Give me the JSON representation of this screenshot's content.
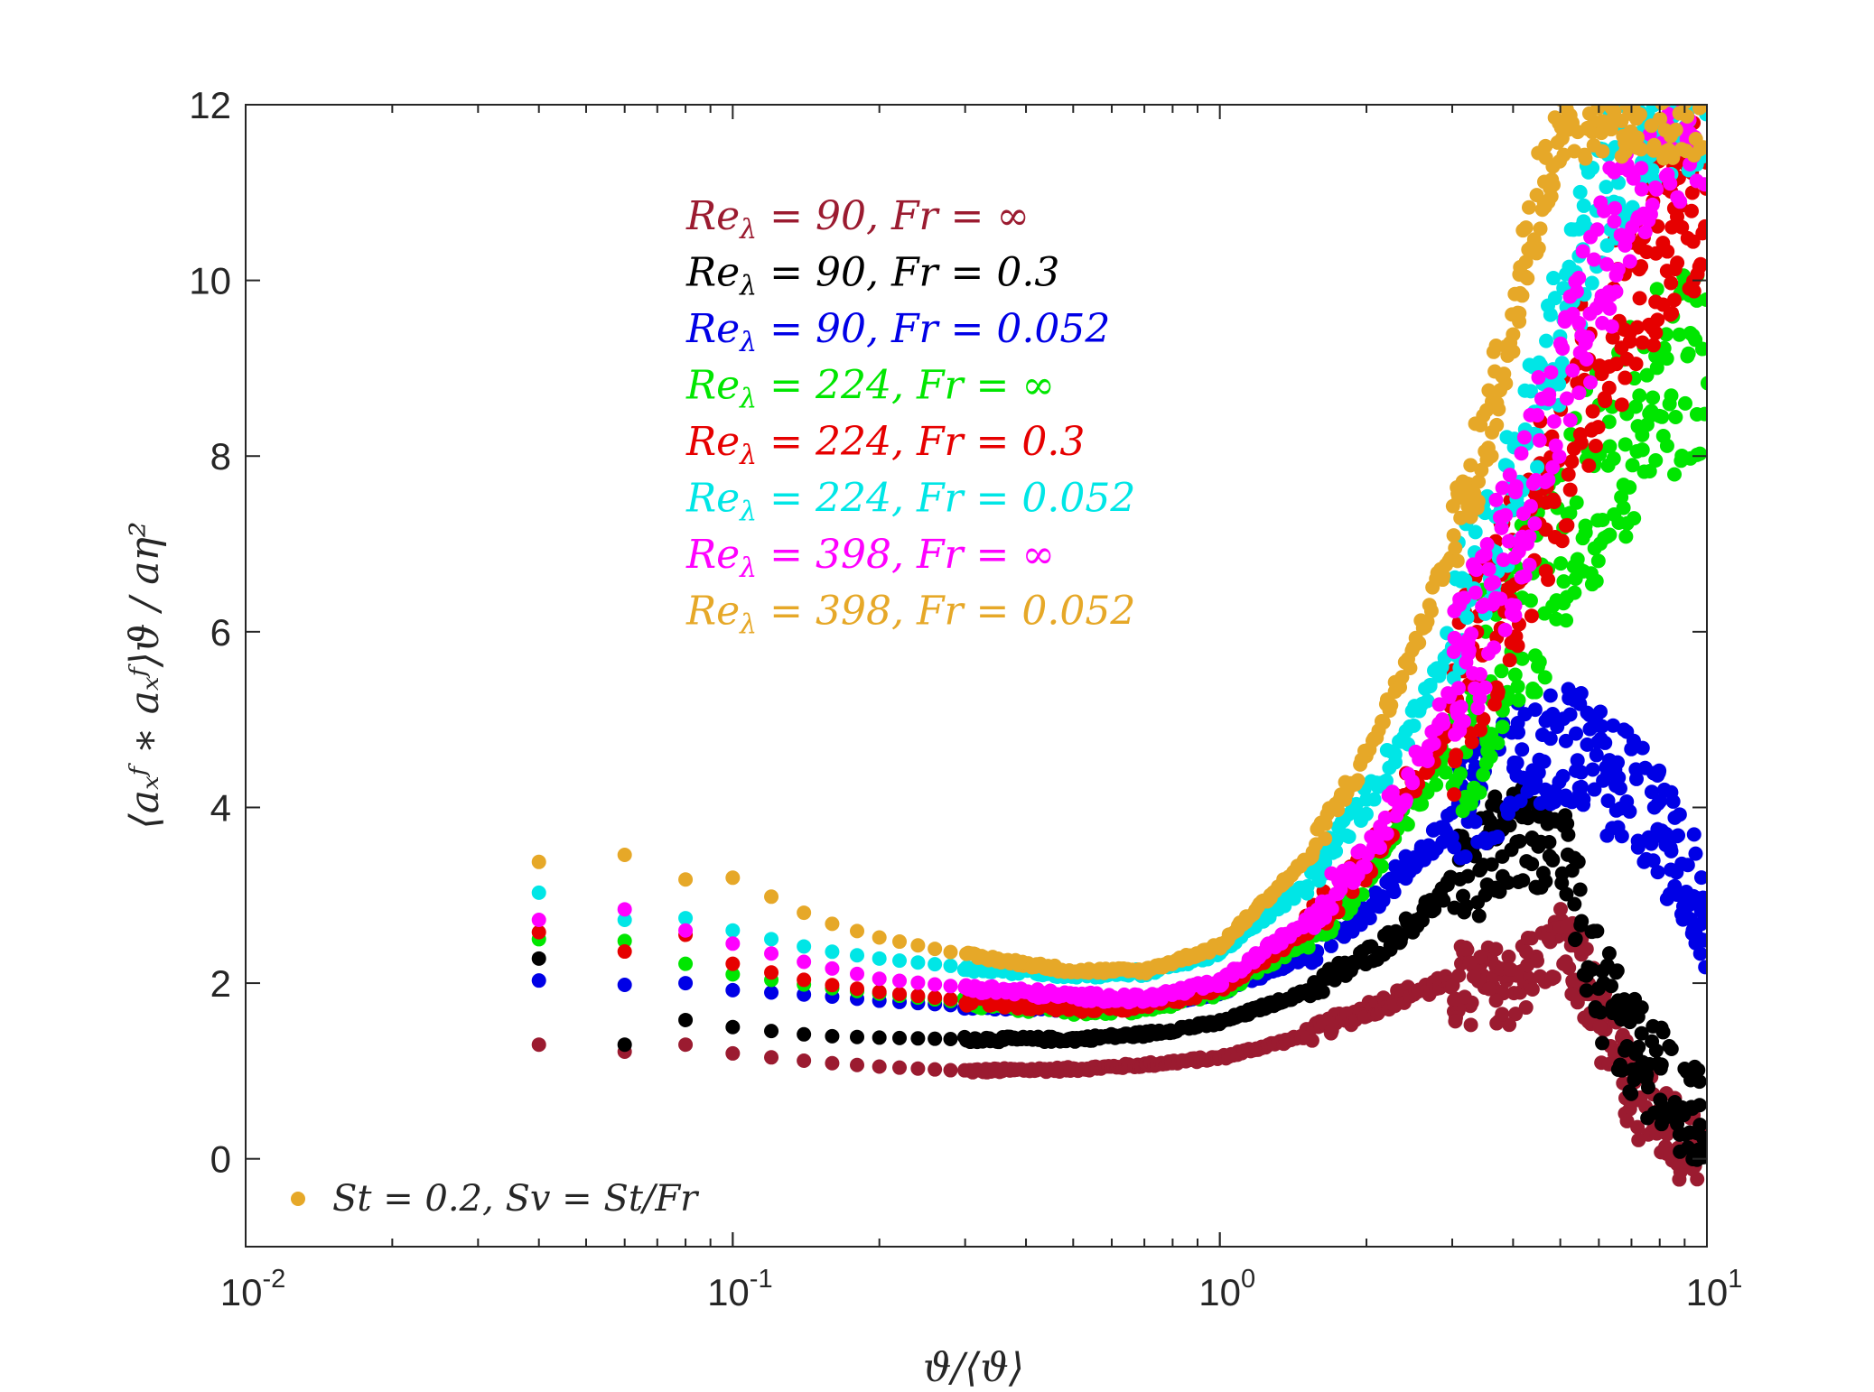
{
  "chart_data": {
    "type": "scatter",
    "xscale": "log",
    "xlim": [
      0.01,
      10
    ],
    "ylim": [
      -1,
      12
    ],
    "xlabel": "ϑ/⟨ϑ⟩",
    "ylabel": "⟨aₓᶠ ∗ aₓᶠ⟩ϑ / aη²",
    "x_ticks": [
      {
        "value": 0.01,
        "base": "10",
        "exp": "-2"
      },
      {
        "value": 0.1,
        "base": "10",
        "exp": "-1"
      },
      {
        "value": 1,
        "base": "10",
        "exp": "0"
      },
      {
        "value": 10,
        "base": "10",
        "exp": "1"
      }
    ],
    "y_ticks": [
      {
        "value": 0,
        "label": "0"
      },
      {
        "value": 2,
        "label": "2"
      },
      {
        "value": 4,
        "label": "4"
      },
      {
        "value": 6,
        "label": "6"
      },
      {
        "value": 8,
        "label": "8"
      },
      {
        "value": 10,
        "label": "10"
      },
      {
        "value": 12,
        "label": "12"
      }
    ],
    "grid": false,
    "legend_position": "top-left inside axes",
    "note": {
      "label": "St = 0.2, Sv = St/Fr",
      "color": "#E6A828"
    },
    "profile_x": [
      0.04,
      0.06,
      0.08,
      0.1,
      0.15,
      0.2,
      0.3,
      0.5,
      0.7,
      1.0,
      1.5,
      2.0,
      2.5,
      3.0,
      3.5,
      4.0,
      4.5,
      5.0,
      5.5,
      6.0,
      7.0,
      8.0,
      9.0,
      10.0
    ],
    "series": [
      {
        "name": "Reλ = 90, Fr = ∞",
        "re": "90",
        "fr": "∞",
        "color": "#9B1B30",
        "values": [
          1.3,
          1.22,
          1.3,
          1.2,
          1.1,
          1.05,
          1.0,
          1.02,
          1.07,
          1.15,
          1.4,
          1.7,
          1.9,
          2.0,
          2.0,
          2.0,
          2.2,
          2.5,
          2.2,
          1.6,
          0.8,
          0.45,
          0.2,
          0.1
        ],
        "scatter": 0.2
      },
      {
        "name": "Reλ = 90, Fr = 0.3",
        "re": "90",
        "fr": "0.3",
        "color": "#000000",
        "values": [
          2.28,
          1.3,
          1.58,
          1.5,
          1.4,
          1.38,
          1.36,
          1.36,
          1.42,
          1.55,
          1.9,
          2.3,
          2.7,
          3.1,
          3.45,
          3.6,
          3.7,
          3.5,
          2.8,
          2.0,
          1.3,
          0.9,
          0.6,
          0.4
        ],
        "scatter": 0.25
      },
      {
        "name": "Reλ = 90, Fr = 0.052",
        "re": "90",
        "fr": "0.052",
        "color": "#0000E6",
        "values": [
          2.03,
          1.98,
          2.0,
          1.92,
          1.86,
          1.8,
          1.74,
          1.72,
          1.76,
          1.9,
          2.3,
          2.85,
          3.4,
          3.85,
          4.2,
          4.45,
          4.6,
          4.65,
          4.6,
          4.5,
          4.2,
          3.8,
          3.2,
          2.7
        ],
        "scatter": 0.3
      },
      {
        "name": "Reλ = 224, Fr = ∞",
        "re": "224",
        "fr": "∞",
        "color": "#00E600",
        "values": [
          2.5,
          2.48,
          2.22,
          2.1,
          1.96,
          1.88,
          1.78,
          1.7,
          1.72,
          1.9,
          2.5,
          3.2,
          4.0,
          4.8,
          5.4,
          6.0,
          6.5,
          7.0,
          7.4,
          7.8,
          8.3,
          8.7,
          8.9,
          9.0
        ],
        "scatter": 0.5
      },
      {
        "name": "Reλ = 224, Fr = 0.3",
        "re": "224",
        "fr": "0.3",
        "color": "#E60000",
        "values": [
          2.58,
          2.36,
          2.55,
          2.22,
          2.0,
          1.9,
          1.8,
          1.72,
          1.74,
          1.95,
          2.6,
          3.4,
          4.3,
          5.1,
          5.9,
          6.6,
          7.3,
          8.0,
          8.6,
          9.2,
          9.9,
          10.4,
          10.8,
          11.0
        ],
        "scatter": 0.45
      },
      {
        "name": "Reλ = 224, Fr = 0.052",
        "re": "224",
        "fr": "0.052",
        "color": "#00E6E6",
        "values": [
          3.03,
          2.72,
          2.74,
          2.6,
          2.38,
          2.28,
          2.18,
          2.1,
          2.12,
          2.35,
          3.1,
          4.1,
          5.0,
          6.0,
          6.9,
          7.7,
          8.6,
          9.4,
          10.2,
          10.9,
          11.5,
          11.9,
          12.0,
          12.0
        ],
        "scatter": 0.35
      },
      {
        "name": "Reλ = 398, Fr = ∞",
        "re": "398",
        "fr": "∞",
        "color": "#FF00FF",
        "values": [
          2.72,
          2.84,
          2.6,
          2.45,
          2.2,
          2.05,
          1.95,
          1.85,
          1.82,
          2.0,
          2.7,
          3.5,
          4.4,
          5.3,
          6.2,
          7.1,
          7.9,
          8.7,
          9.4,
          10.1,
          11.0,
          11.6,
          11.9,
          12.0
        ],
        "scatter": 0.4
      },
      {
        "name": "Reλ = 398, Fr = 0.052",
        "re": "398",
        "fr": "0.052",
        "color": "#E6A828",
        "values": [
          3.38,
          3.46,
          3.18,
          3.2,
          2.72,
          2.52,
          2.32,
          2.14,
          2.14,
          2.42,
          3.4,
          4.6,
          5.8,
          7.0,
          8.2,
          9.6,
          10.9,
          11.8,
          12.0,
          12.0,
          12.0,
          12.0,
          12.0,
          12.0
        ],
        "scatter": 0.25
      }
    ]
  }
}
